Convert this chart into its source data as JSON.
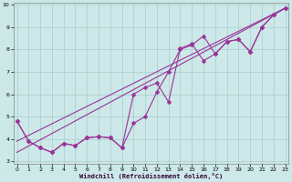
{
  "xlabel": "Windchill (Refroidissement éolien,°C)",
  "bg_color": "#cce8e8",
  "grid_color": "#aacccc",
  "line_color": "#993399",
  "xlim": [
    0,
    23
  ],
  "ylim": [
    3,
    10
  ],
  "yticks": [
    3,
    4,
    5,
    6,
    7,
    8,
    9,
    10
  ],
  "xticks": [
    0,
    1,
    2,
    3,
    4,
    5,
    6,
    7,
    8,
    9,
    10,
    11,
    12,
    13,
    14,
    15,
    16,
    17,
    18,
    19,
    20,
    21,
    22,
    23
  ],
  "line1_x": [
    0,
    1,
    2,
    3,
    4,
    5,
    6,
    7,
    8,
    9,
    10,
    11,
    12,
    13,
    14,
    15,
    16,
    17,
    18,
    19,
    20,
    21,
    22,
    23
  ],
  "line1_y": [
    4.8,
    3.9,
    3.6,
    3.4,
    3.8,
    3.7,
    4.05,
    4.1,
    4.05,
    3.6,
    4.7,
    5.0,
    6.1,
    7.0,
    8.0,
    8.2,
    8.6,
    7.8,
    8.35,
    8.45,
    7.9,
    9.0,
    9.55,
    9.85
  ],
  "line2_x": [
    0,
    1,
    2,
    3,
    4,
    5,
    6,
    7,
    8,
    9,
    10,
    11,
    12,
    13,
    14,
    15,
    16,
    17,
    18,
    19,
    20,
    21,
    22,
    23
  ],
  "line2_y": [
    4.8,
    3.9,
    3.6,
    3.4,
    3.8,
    3.7,
    4.05,
    4.1,
    4.05,
    3.6,
    6.0,
    6.3,
    6.5,
    5.65,
    8.05,
    8.25,
    7.5,
    7.8,
    8.35,
    8.45,
    7.9,
    9.0,
    9.55,
    9.85
  ],
  "trend1_x": [
    0,
    23
  ],
  "trend1_y": [
    3.9,
    9.85
  ],
  "trend2_x": [
    0,
    23
  ],
  "trend2_y": [
    3.4,
    9.85
  ]
}
